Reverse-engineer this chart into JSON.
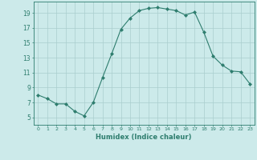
{
  "x": [
    0,
    1,
    2,
    3,
    4,
    5,
    6,
    7,
    8,
    9,
    10,
    11,
    12,
    13,
    14,
    15,
    16,
    17,
    18,
    19,
    20,
    21,
    22,
    23
  ],
  "y": [
    8.0,
    7.5,
    6.8,
    6.8,
    5.8,
    5.2,
    7.0,
    10.3,
    13.5,
    16.8,
    18.3,
    19.3,
    19.6,
    19.7,
    19.5,
    19.3,
    18.7,
    19.1,
    16.4,
    13.2,
    12.0,
    11.2,
    11.1,
    9.5
  ],
  "xlim": [
    -0.5,
    23.5
  ],
  "ylim": [
    4.0,
    20.5
  ],
  "xticks": [
    0,
    1,
    2,
    3,
    4,
    5,
    6,
    7,
    8,
    9,
    10,
    11,
    12,
    13,
    14,
    15,
    16,
    17,
    18,
    19,
    20,
    21,
    22,
    23
  ],
  "yticks": [
    5,
    7,
    9,
    11,
    13,
    15,
    17,
    19
  ],
  "xlabel": "Humidex (Indice chaleur)",
  "line_color": "#2e7d6e",
  "marker": "D",
  "marker_size": 2.0,
  "bg_color": "#cceaea",
  "grid_color": "#aacece"
}
